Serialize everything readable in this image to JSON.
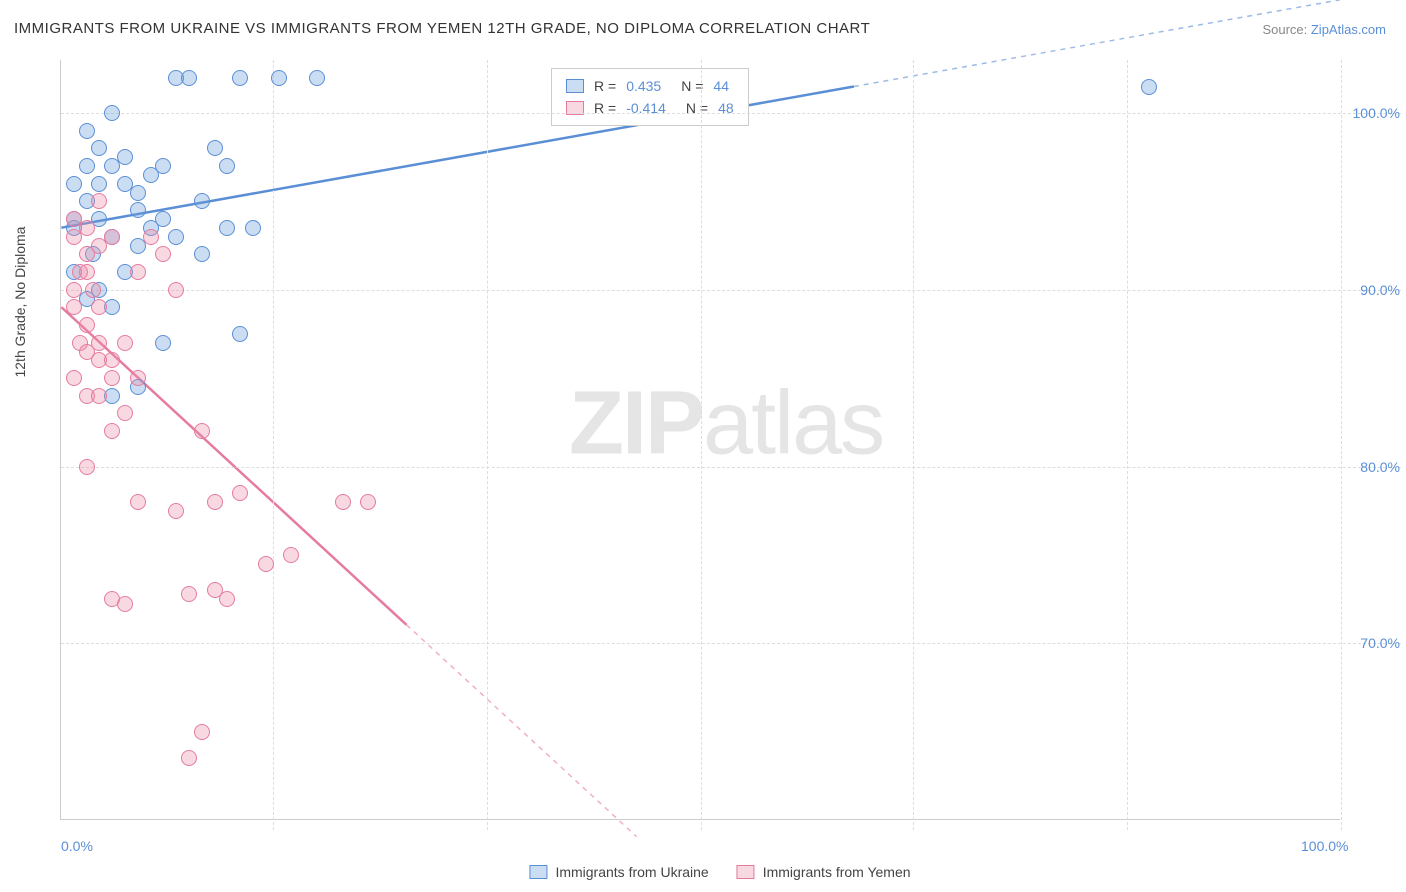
{
  "title": "IMMIGRANTS FROM UKRAINE VS IMMIGRANTS FROM YEMEN 12TH GRADE, NO DIPLOMA CORRELATION CHART",
  "source_prefix": "Source: ",
  "source_link": "ZipAtlas.com",
  "watermark_a": "ZIP",
  "watermark_b": "atlas",
  "chart": {
    "type": "scatter",
    "xlim": [
      0,
      100
    ],
    "ylim": [
      60,
      103
    ],
    "x_ticks": [
      0,
      100
    ],
    "x_tick_labels": [
      "0.0%",
      "100.0%"
    ],
    "y_ticks": [
      70,
      80,
      90,
      100
    ],
    "y_tick_labels": [
      "70.0%",
      "80.0%",
      "90.0%",
      "100.0%"
    ],
    "grid_x_positions": [
      0,
      16.6,
      33.3,
      50,
      66.6,
      83.3,
      100
    ],
    "y_axis_label": "12th Grade, No Diploma",
    "background_color": "#ffffff",
    "grid_color": "#dddddd",
    "axis_color": "#cccccc",
    "tick_label_color": "#5a8fd6",
    "series": [
      {
        "name": "Immigrants from Ukraine",
        "color": "#5a8fd6",
        "fill": "rgba(106,158,218,0.35)",
        "R": "0.435",
        "N": "44",
        "trend": {
          "x1": 0,
          "y1": 93.5,
          "x2": 62,
          "y2": 101.5,
          "dash_from_x": 62,
          "dash_to_x": 100
        },
        "points": [
          [
            1,
            93.5
          ],
          [
            2,
            95
          ],
          [
            3,
            96
          ],
          [
            2.5,
            92
          ],
          [
            4,
            97
          ],
          [
            3,
            94
          ],
          [
            5,
            97.5
          ],
          [
            6,
            95.5
          ],
          [
            4,
            93
          ],
          [
            7,
            96.5
          ],
          [
            8,
            97
          ],
          [
            6,
            94.5
          ],
          [
            9,
            102
          ],
          [
            10,
            102
          ],
          [
            12,
            98
          ],
          [
            14,
            102
          ],
          [
            13,
            97
          ],
          [
            15,
            93.5
          ],
          [
            17,
            102
          ],
          [
            20,
            102
          ],
          [
            11,
            95
          ],
          [
            5,
            91
          ],
          [
            3,
            90
          ],
          [
            6,
            92.5
          ],
          [
            2,
            89.5
          ],
          [
            1,
            91
          ],
          [
            4,
            89
          ],
          [
            7,
            93.5
          ],
          [
            8,
            94
          ],
          [
            5,
            96
          ],
          [
            4,
            84
          ],
          [
            6,
            84.5
          ],
          [
            8,
            87
          ],
          [
            14,
            87.5
          ],
          [
            13,
            93.5
          ],
          [
            9,
            93
          ],
          [
            11,
            92
          ],
          [
            85,
            101.5
          ],
          [
            2,
            97
          ],
          [
            1,
            96
          ],
          [
            3,
            98
          ],
          [
            2,
            99
          ],
          [
            4,
            100
          ],
          [
            1,
            94
          ]
        ]
      },
      {
        "name": "Immigrants from Yemen",
        "color": "#e67ba0",
        "fill": "rgba(236,142,168,0.35)",
        "R": "-0.414",
        "N": "48",
        "trend": {
          "x1": 0,
          "y1": 89,
          "x2": 27,
          "y2": 71,
          "dash_from_x": 27,
          "dash_to_x": 45
        },
        "points": [
          [
            1,
            93
          ],
          [
            2,
            92
          ],
          [
            1.5,
            91
          ],
          [
            2.5,
            90
          ],
          [
            3,
            92.5
          ],
          [
            2,
            93.5
          ],
          [
            1,
            94
          ],
          [
            3,
            95
          ],
          [
            4,
            93
          ],
          [
            1,
            89
          ],
          [
            2,
            88
          ],
          [
            1.5,
            87
          ],
          [
            2,
            86.5
          ],
          [
            3,
            86
          ],
          [
            1,
            85
          ],
          [
            2,
            84
          ],
          [
            3,
            87
          ],
          [
            4,
            86
          ],
          [
            5,
            87
          ],
          [
            6,
            85
          ],
          [
            3,
            84
          ],
          [
            4,
            85
          ],
          [
            5,
            83
          ],
          [
            7,
            93
          ],
          [
            8,
            92
          ],
          [
            6,
            91
          ],
          [
            9,
            90
          ],
          [
            4,
            82
          ],
          [
            11,
            82
          ],
          [
            6,
            78
          ],
          [
            12,
            78
          ],
          [
            14,
            78.5
          ],
          [
            16,
            74.5
          ],
          [
            18,
            75
          ],
          [
            22,
            78
          ],
          [
            24,
            78
          ],
          [
            9,
            77.5
          ],
          [
            2,
            80
          ],
          [
            4,
            72.5
          ],
          [
            5,
            72.2
          ],
          [
            10,
            72.8
          ],
          [
            12,
            73
          ],
          [
            13,
            72.5
          ],
          [
            11,
            65
          ],
          [
            10,
            63.5
          ],
          [
            1,
            90
          ],
          [
            2,
            91
          ],
          [
            3,
            89
          ]
        ]
      }
    ],
    "bottom_legend": [
      "Immigrants from Ukraine",
      "Immigrants from Yemen"
    ]
  }
}
